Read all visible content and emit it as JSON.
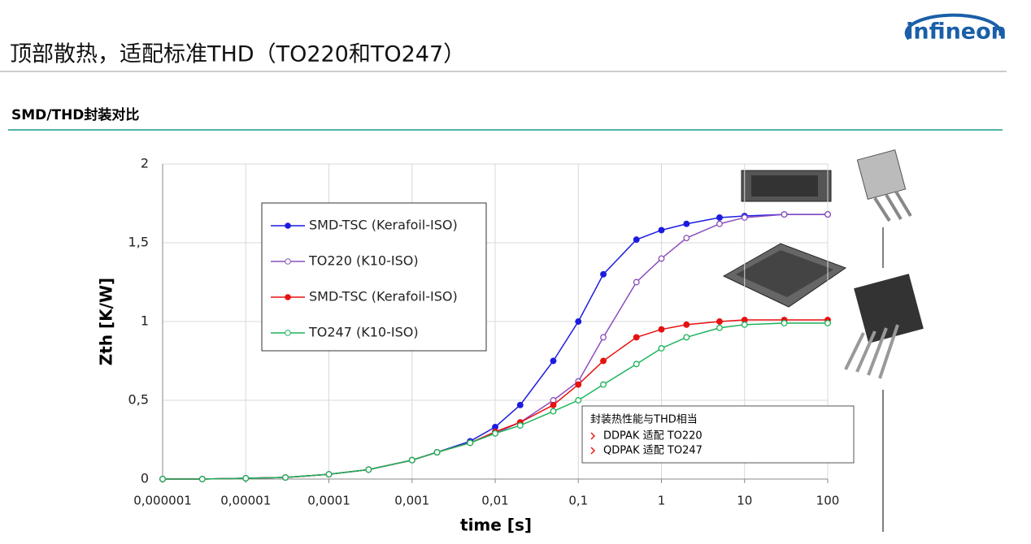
{
  "header": {
    "title": "顶部散热，适配标准THD（TO220和TO247）",
    "logo": "infineon"
  },
  "section": "SMD/THD封装对比",
  "chart_data": {
    "type": "line",
    "xlabel": "time [s]",
    "ylabel": "Zth [K/W]",
    "log_x": true,
    "grid": true,
    "x": [
      1e-06,
      3e-06,
      1e-05,
      3e-05,
      0.0001,
      0.0003,
      0.001,
      0.002,
      0.005,
      0.01,
      0.02,
      0.05,
      0.1,
      0.2,
      0.5,
      1,
      2,
      5,
      10,
      30,
      100
    ],
    "series": [
      {
        "name": "SMD-TSC (Kerafoil-ISO)",
        "color": "#1c1ce0",
        "filled": true,
        "values": [
          0,
          0,
          0.005,
          0.01,
          0.03,
          0.06,
          0.12,
          0.17,
          0.24,
          0.33,
          0.47,
          0.75,
          1.0,
          1.3,
          1.52,
          1.58,
          1.62,
          1.66,
          1.67,
          1.68,
          1.68
        ]
      },
      {
        "name": "TO220 (K10-ISO)",
        "color": "#8b4fbe",
        "filled": false,
        "values": [
          0,
          0,
          0.005,
          0.01,
          0.03,
          0.06,
          0.12,
          0.17,
          0.23,
          0.29,
          0.36,
          0.5,
          0.62,
          0.9,
          1.25,
          1.4,
          1.53,
          1.62,
          1.66,
          1.68,
          1.68
        ]
      },
      {
        "name": "SMD-TSC (Kerafoil-ISO)",
        "color": "#e81010",
        "filled": true,
        "values": [
          0,
          0,
          0.005,
          0.01,
          0.03,
          0.06,
          0.12,
          0.17,
          0.23,
          0.3,
          0.36,
          0.47,
          0.6,
          0.75,
          0.9,
          0.95,
          0.98,
          1.0,
          1.01,
          1.01,
          1.01
        ]
      },
      {
        "name": "TO247 (K10-ISO)",
        "color": "#1cb35a",
        "filled": false,
        "values": [
          0,
          0,
          0.005,
          0.01,
          0.03,
          0.06,
          0.12,
          0.17,
          0.23,
          0.29,
          0.34,
          0.43,
          0.5,
          0.6,
          0.73,
          0.83,
          0.9,
          0.96,
          0.98,
          0.99,
          0.99
        ]
      }
    ],
    "xlim": [
      1e-06,
      100
    ],
    "xticks": [
      {
        "value": 1e-06,
        "label": "0,000001"
      },
      {
        "value": 1e-05,
        "label": "0,00001"
      },
      {
        "value": 0.0001,
        "label": "0,0001"
      },
      {
        "value": 0.001,
        "label": "0,001"
      },
      {
        "value": 0.01,
        "label": "0,01"
      },
      {
        "value": 0.1,
        "label": "0,1"
      },
      1,
      10,
      100
    ],
    "ylim": [
      0,
      2
    ],
    "yticks": [
      0,
      {
        "value": 0.5,
        "label": "0,5"
      },
      1,
      {
        "value": 1.5,
        "label": "1,5"
      },
      2
    ],
    "annotation": {
      "title": "封装热性能与THD相当",
      "items": [
        "DDPAK 适配 TO220",
        "QDPAK 适配 TO247"
      ]
    }
  }
}
